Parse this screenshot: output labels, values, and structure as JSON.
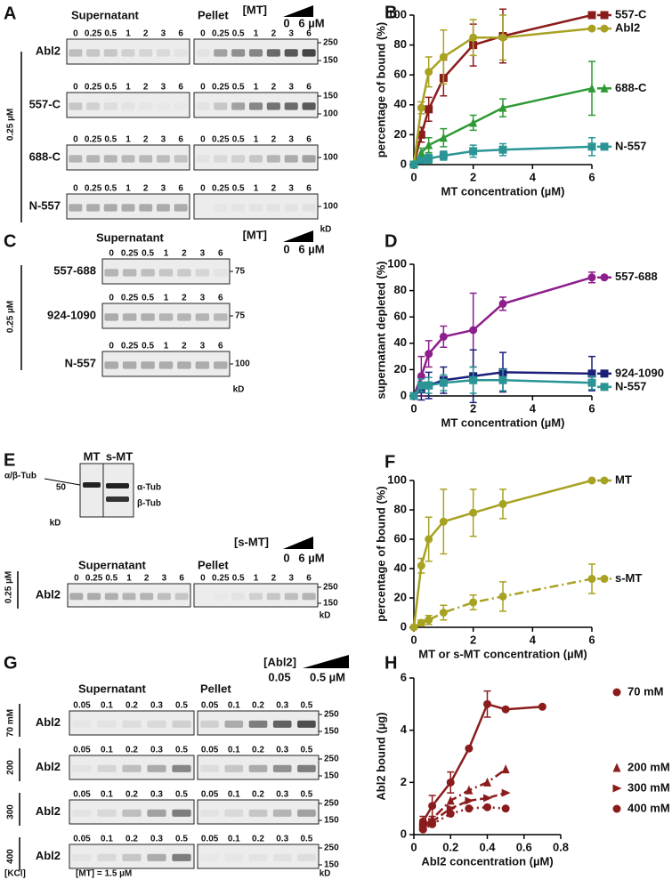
{
  "gels": [
    {
      "panel": "A",
      "supernatant": "Supernatant",
      "pellet": "Pellet",
      "titrant": "[MT]",
      "low": "0",
      "high": "6 µM",
      "side": "0.25 µM",
      "unit": "kD",
      "lanes": [
        "0",
        "0.25",
        "0.5",
        "1",
        "2",
        "3",
        "6"
      ],
      "rows": [
        {
          "name": "Abl2",
          "mw": [
            "250",
            "150"
          ]
        },
        {
          "name": "557-C",
          "mw": [
            "150",
            "100"
          ]
        },
        {
          "name": "688-C",
          "mw": [
            "100"
          ]
        },
        {
          "name": "N-557",
          "mw": [
            "100"
          ]
        }
      ]
    },
    {
      "panel": "C",
      "supernatant": "Supernatant",
      "titrant": "[MT]",
      "low": "0",
      "high": "6 µM",
      "side": "0.25 µM",
      "unit": "kD",
      "lanes": [
        "0",
        "0.25",
        "0.5",
        "1",
        "2",
        "3",
        "6"
      ],
      "rows": [
        {
          "name": "557-688",
          "mw": [
            "75"
          ]
        },
        {
          "name": "924-1090",
          "mw": [
            "75"
          ]
        },
        {
          "name": "N-557",
          "mw": [
            "100"
          ]
        }
      ]
    },
    {
      "panel": "E",
      "inset": {
        "lanes": [
          "MT",
          "s-MT"
        ],
        "left": "α/β-Tub",
        "mw": "50",
        "right": [
          "α-Tub",
          "β-Tub"
        ],
        "unit": "kD"
      },
      "supernatant": "Supernatant",
      "pellet": "Pellet",
      "titrant": "[s-MT]",
      "low": "0",
      "high": "6 µM",
      "side": "0.25 µM",
      "unit": "kD",
      "lanes": [
        "0",
        "0.25",
        "0.5",
        "1",
        "2",
        "3",
        "6"
      ],
      "rows": [
        {
          "name": "Abl2",
          "mw": [
            "250",
            "150"
          ]
        }
      ]
    },
    {
      "panel": "G",
      "supernatant": "Supernatant",
      "pellet": "Pellet",
      "titrant": "[Abl2]",
      "low": "0.05",
      "high": "0.5 µM",
      "unit": "kD",
      "side_title": "[KCl]",
      "note": "[MT] = 1.5 µM",
      "lanes": [
        "0.05",
        "0.1",
        "0.2",
        "0.3",
        "0.5"
      ],
      "rows": [
        {
          "name": "Abl2",
          "side": "70 mM",
          "mw": [
            "250",
            "150"
          ]
        },
        {
          "name": "Abl2",
          "side": "200",
          "mw": [
            "250",
            "150"
          ]
        },
        {
          "name": "Abl2",
          "side": "300",
          "mw": [
            "250",
            "150"
          ]
        },
        {
          "name": "Abl2",
          "side": "400",
          "mw": [
            "250",
            "150"
          ]
        }
      ]
    }
  ],
  "chart_data": [
    {
      "type": "line",
      "panel": "B",
      "y_label": "percentage of bound (%)",
      "x_label": "MT concentration (µM)",
      "x": [
        0,
        0.25,
        0.5,
        1,
        2,
        3,
        6
      ],
      "xlim": [
        0,
        6
      ],
      "xticks": [
        0,
        2,
        4,
        6
      ],
      "ylim": [
        0,
        100
      ],
      "yticks": [
        0,
        20,
        40,
        60,
        80,
        100
      ],
      "legend": "end",
      "series": [
        {
          "name": "557-C",
          "color": "#8b1c1c",
          "marker": "square",
          "values": [
            0,
            20,
            37,
            58,
            80,
            86,
            100
          ],
          "errors": [
            null,
            5,
            8,
            12,
            14,
            18,
            null
          ]
        },
        {
          "name": "Abl2",
          "color": "#a8a223",
          "marker": "circle",
          "values": [
            0,
            38,
            62,
            72,
            85,
            85,
            91
          ],
          "errors": [
            null,
            4,
            10,
            18,
            12,
            15,
            null
          ]
        },
        {
          "name": "688-C",
          "color": "#2f9a35",
          "marker": "triangle",
          "values": [
            0,
            8,
            13,
            18,
            28,
            38,
            51
          ],
          "errors": [
            null,
            3,
            5,
            6,
            5,
            6,
            18
          ]
        },
        {
          "name": "N-557",
          "color": "#2b9595",
          "marker": "square",
          "values": [
            0,
            3,
            4,
            6,
            9,
            10,
            12
          ],
          "errors": [
            null,
            2,
            3,
            3,
            4,
            4,
            6
          ]
        }
      ]
    },
    {
      "type": "line",
      "panel": "D",
      "y_label": "supernatant depleted (%)",
      "x_label": "MT concentration (µM)",
      "x": [
        0,
        0.25,
        0.5,
        1,
        2,
        3,
        6
      ],
      "xlim": [
        0,
        6
      ],
      "xticks": [
        0,
        2,
        4,
        6
      ],
      "ylim": [
        0,
        100
      ],
      "yticks": [
        0,
        20,
        40,
        60,
        80,
        100
      ],
      "legend": "end",
      "series": [
        {
          "name": "557-688",
          "color": "#8c1f8c",
          "marker": "circle",
          "values": [
            0,
            15,
            32,
            45,
            50,
            70,
            90
          ],
          "errors": [
            null,
            15,
            10,
            8,
            28,
            5,
            4
          ]
        },
        {
          "name": "924-1090",
          "color": "#1c1f7a",
          "marker": "square",
          "values": [
            0,
            5,
            8,
            12,
            15,
            18,
            17
          ],
          "errors": [
            null,
            8,
            10,
            10,
            20,
            15,
            13
          ]
        },
        {
          "name": "N-557",
          "color": "#2b9595",
          "marker": "square",
          "values": [
            0,
            8,
            8,
            10,
            12,
            12,
            10
          ],
          "errors": [
            null,
            5,
            6,
            6,
            10,
            8,
            5
          ]
        }
      ]
    },
    {
      "type": "line",
      "panel": "F",
      "y_label": "percentage of bound (%)",
      "x_label": "MT or s-MT concentration (µM)",
      "x": [
        0,
        0.25,
        0.5,
        1,
        2,
        3,
        6
      ],
      "xlim": [
        0,
        6
      ],
      "xticks": [
        0,
        2,
        4,
        6
      ],
      "ylim": [
        0,
        100
      ],
      "yticks": [
        0,
        20,
        40,
        60,
        80,
        100
      ],
      "legend": "end",
      "series": [
        {
          "name": "MT",
          "color": "#a8a223",
          "marker": "circle",
          "values": [
            0,
            42,
            60,
            72,
            78,
            84,
            100
          ],
          "errors": [
            null,
            5,
            15,
            22,
            16,
            10,
            null
          ]
        },
        {
          "name": "s-MT",
          "color": "#a8a223",
          "marker": "circle",
          "dash": "dashdot",
          "values": [
            0,
            3,
            5,
            10,
            17,
            21,
            33
          ],
          "errors": [
            null,
            2,
            3,
            5,
            5,
            10,
            10
          ]
        }
      ]
    },
    {
      "type": "line",
      "panel": "H",
      "y_label": "Abl2 bound (µg)",
      "x_label": "Abl2 concentration (µM)",
      "xlim": [
        0,
        0.8
      ],
      "xticks": [
        0,
        0.2,
        0.4,
        0.6,
        0.8
      ],
      "ylim": [
        0,
        6
      ],
      "yticks": [
        0,
        2,
        4,
        6
      ],
      "legend": "right",
      "series": [
        {
          "name": "70 mM",
          "color": "#8b1c1c",
          "marker": "circle",
          "x": [
            0.05,
            0.1,
            0.2,
            0.3,
            0.4,
            0.5,
            0.7
          ],
          "values": [
            0.5,
            1.1,
            2.0,
            3.3,
            5.0,
            4.8,
            4.9
          ],
          "errors": [
            0.2,
            0.4,
            0.4,
            null,
            0.5,
            null,
            null
          ]
        },
        {
          "name": "200 mM",
          "color": "#8b1c1c",
          "marker": "triangle",
          "dash": "dashdot",
          "x": [
            0.05,
            0.1,
            0.2,
            0.3,
            0.4,
            0.5
          ],
          "values": [
            0.3,
            0.6,
            1.3,
            1.7,
            2.0,
            2.5
          ],
          "errors": [
            null,
            null,
            null,
            null,
            null,
            null
          ]
        },
        {
          "name": "300 mM",
          "color": "#8b1c1c",
          "marker": "triangle-right",
          "dash": "dash",
          "x": [
            0.05,
            0.1,
            0.2,
            0.3,
            0.4,
            0.5
          ],
          "values": [
            0.3,
            0.5,
            1.0,
            1.3,
            1.4,
            1.6
          ],
          "errors": [
            null,
            null,
            null,
            null,
            null,
            null
          ]
        },
        {
          "name": "400 mM",
          "color": "#8b1c1c",
          "marker": "circle",
          "dash": "dot",
          "x": [
            0.05,
            0.1,
            0.2,
            0.3,
            0.4,
            0.5
          ],
          "values": [
            0.2,
            0.4,
            0.8,
            1.0,
            1.05,
            1.0
          ],
          "errors": [
            null,
            null,
            null,
            null,
            null,
            null
          ]
        }
      ]
    }
  ]
}
